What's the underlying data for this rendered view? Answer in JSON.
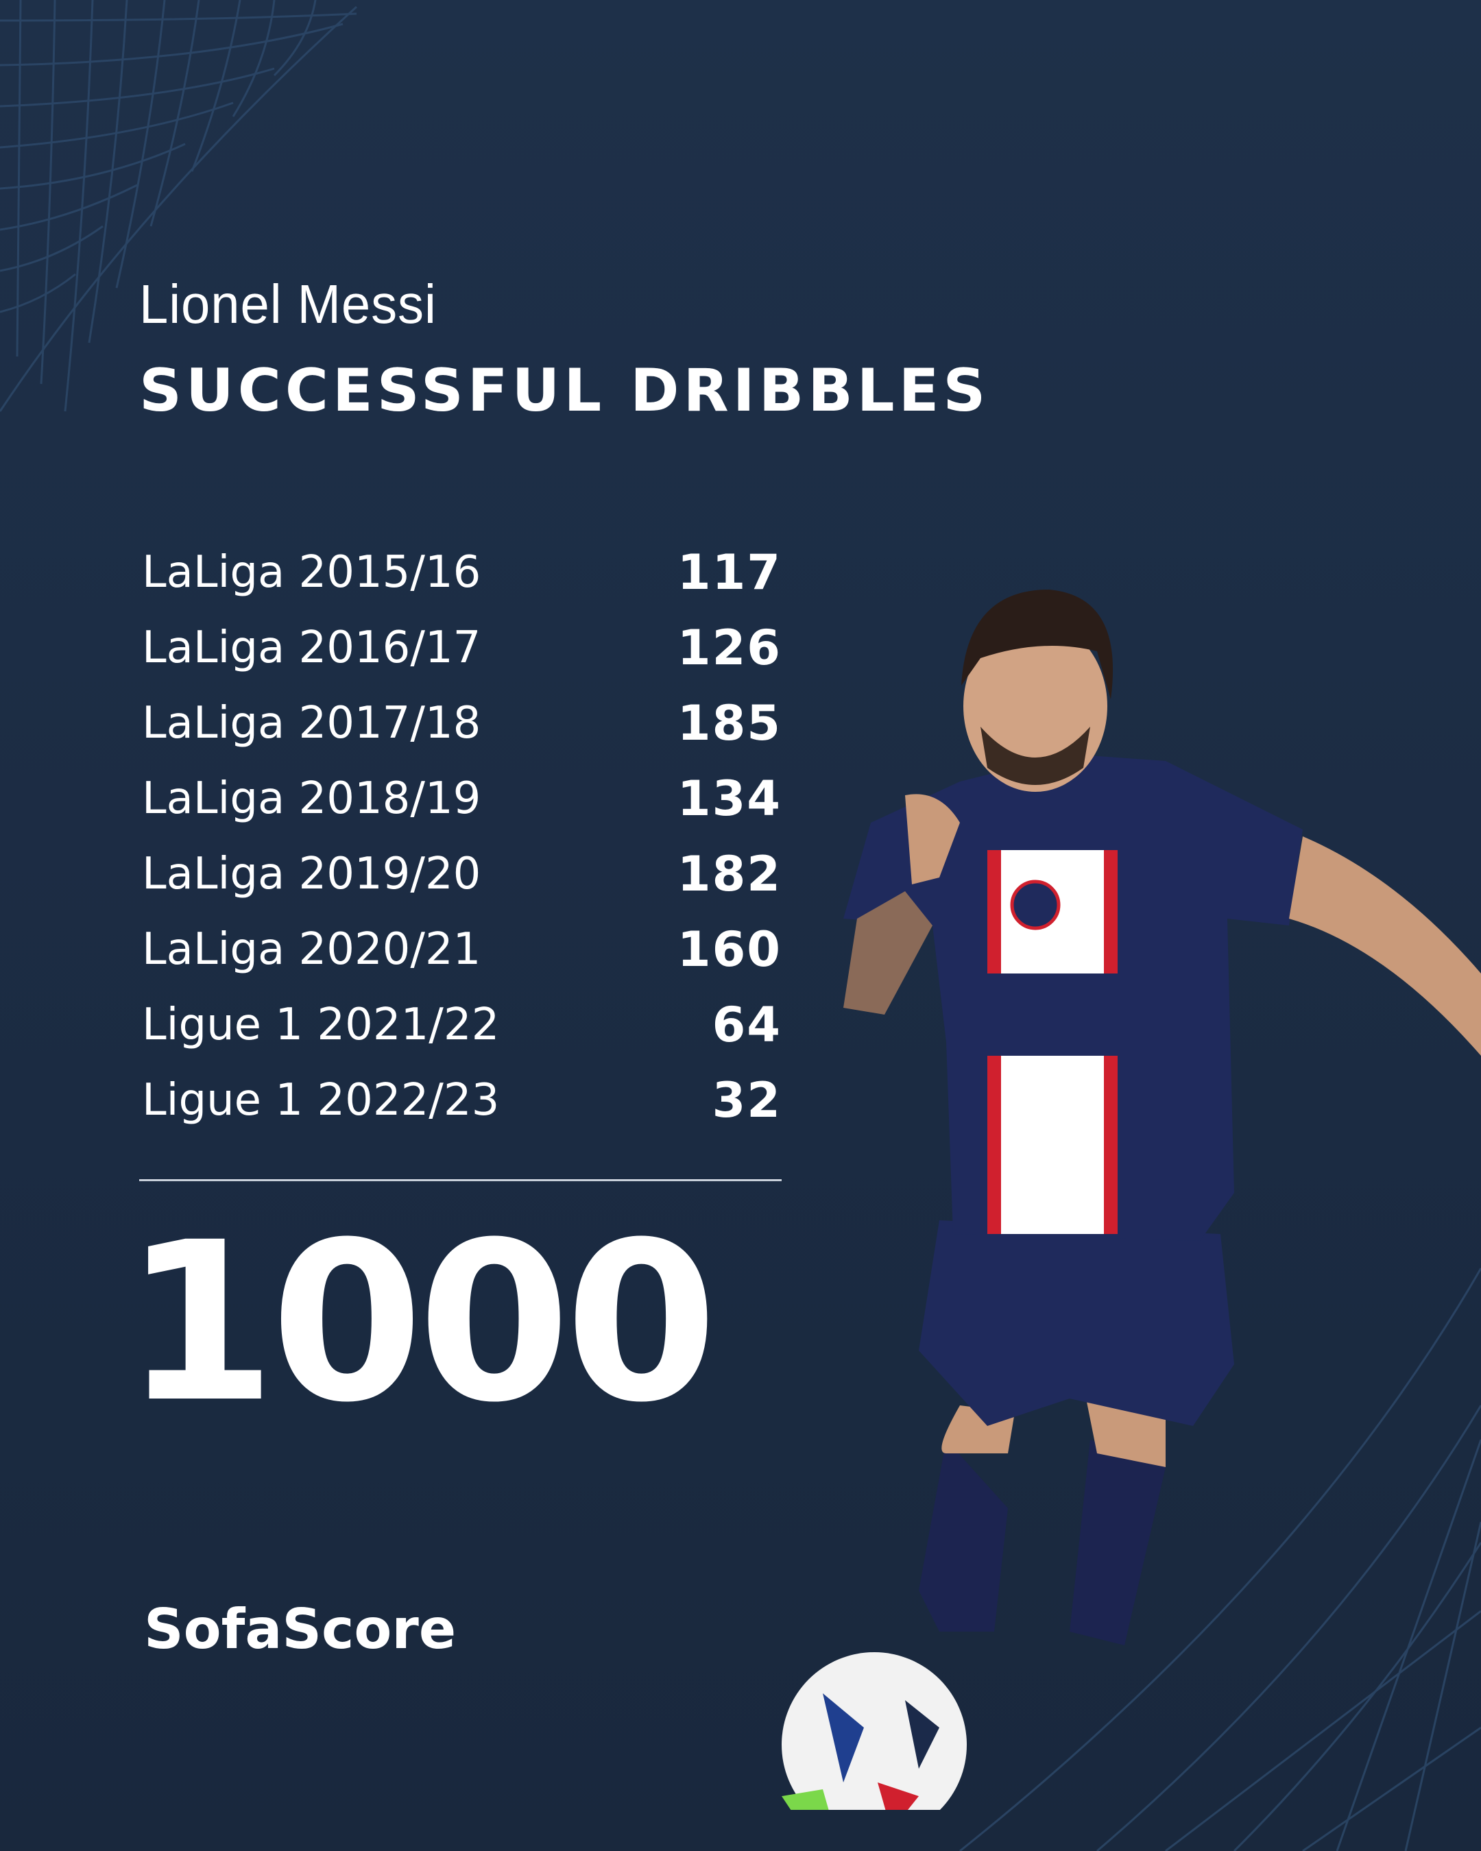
{
  "header": {
    "player_name": "Lionel Messi",
    "stat_title": "SUCCESSFUL DRIBBLES"
  },
  "rows": [
    {
      "season": "LaLiga 2015/16",
      "value": "117"
    },
    {
      "season": "LaLiga 2016/17",
      "value": "126"
    },
    {
      "season": "LaLiga 2017/18",
      "value": "185"
    },
    {
      "season": "LaLiga 2018/19",
      "value": "134"
    },
    {
      "season": "LaLiga 2019/20",
      "value": "182"
    },
    {
      "season": "LaLiga 2020/21",
      "value": "160"
    },
    {
      "season": "Ligue 1 2021/22",
      "value": "64"
    },
    {
      "season": "Ligue 1 2022/23",
      "value": "32"
    }
  ],
  "total": "1000",
  "brand": "SofaScore",
  "colors": {
    "background": "#1d2f47",
    "text": "#ffffff",
    "grid": "#2e4a6b",
    "kit": "#1f2a5c",
    "kit_red": "#d0202e"
  }
}
